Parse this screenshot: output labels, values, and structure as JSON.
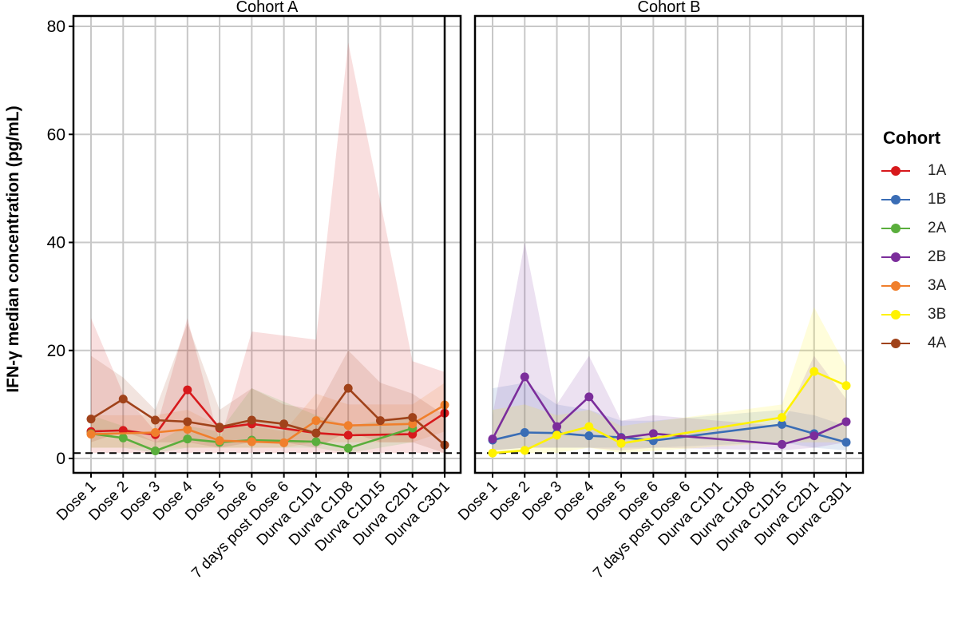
{
  "chart_data": {
    "type": "line",
    "ylabel": "IFN-γ median concentration (pg/mL)",
    "ylim": [
      0,
      80
    ],
    "yticks": [
      0,
      20,
      40,
      60,
      80
    ],
    "grid": true,
    "reference_line": 1.0,
    "legend": {
      "title": "Cohort",
      "placement": "right"
    },
    "categories": [
      "Dose 1",
      "Dose 2",
      "Dose 3",
      "Dose 4",
      "Dose 5",
      "Dose 6",
      "7 days post Dose 6",
      "Durva C1D1",
      "Durva C1D8",
      "Durva C1D15",
      "Durva C2D1",
      "Durva C3D1"
    ],
    "panels": [
      {
        "title": "Cohort A",
        "series": [
          {
            "name": "1A",
            "color": "#D7191C",
            "values": [
              5.0,
              5.2,
              4.4,
              12.7,
              5.6,
              6.4,
              null,
              4.7,
              4.3,
              null,
              4.5,
              8.4
            ],
            "band_low": [
              1.0,
              1.0,
              1.0,
              1.0,
              1.0,
              1.0,
              null,
              1.0,
              1.0,
              null,
              1.0,
              1.0
            ],
            "band_high": [
              26,
              12,
              5,
              26,
              3,
              23.5,
              null,
              22,
              77,
              null,
              18,
              16
            ]
          },
          {
            "name": "2A",
            "color": "#5AAE3C",
            "values": [
              4.6,
              3.8,
              1.4,
              3.6,
              3.0,
              3.4,
              null,
              3.1,
              1.9,
              null,
              5.6,
              null
            ],
            "band_low": [
              2,
              2,
              1,
              2,
              2,
              2,
              null,
              2,
              1,
              null,
              3,
              null
            ],
            "band_high": [
              8,
              6,
              3,
              6,
              5,
              13,
              null,
              8,
              6,
              null,
              8,
              null
            ]
          },
          {
            "name": "3A",
            "color": "#F07F2C",
            "values": [
              4.5,
              null,
              4.8,
              5.4,
              3.3,
              3.1,
              2.9,
              7.0,
              6.1,
              null,
              6.4,
              9.9
            ],
            "band_low": [
              2,
              null,
              2,
              2,
              2,
              2,
              2,
              3,
              3,
              null,
              3,
              5
            ],
            "band_high": [
              8,
              null,
              8,
              9,
              6,
              6,
              5,
              12,
              10,
              null,
              10,
              14
            ]
          },
          {
            "name": "4A",
            "color": "#A0421A",
            "values": [
              7.3,
              11.0,
              7.1,
              6.8,
              5.8,
              7.1,
              6.4,
              4.7,
              13.0,
              7.0,
              7.6,
              2.5
            ],
            "band_low": [
              3,
              5,
              3,
              3,
              2,
              3,
              3,
              2,
              5,
              3,
              3,
              1
            ],
            "band_high": [
              19,
              15,
              9,
              25,
              9,
              13,
              10,
              9,
              20,
              14,
              12,
              8
            ]
          }
        ]
      },
      {
        "title": "Cohort B",
        "series": [
          {
            "name": "1B",
            "color": "#3A6DB5",
            "values": [
              3.4,
              4.8,
              4.7,
              4.2,
              3.9,
              3.3,
              null,
              null,
              null,
              6.3,
              4.6,
              3.0
            ],
            "band_low": [
              1.5,
              2,
              2,
              2,
              2,
              2,
              null,
              null,
              null,
              3,
              2,
              1.5
            ],
            "band_high": [
              13,
              14,
              10,
              9,
              7,
              7,
              null,
              null,
              null,
              9,
              8,
              6
            ]
          },
          {
            "name": "2B",
            "color": "#7B2D9B",
            "values": [
              3.6,
              15.1,
              5.9,
              11.4,
              3.8,
              4.6,
              null,
              null,
              null,
              2.6,
              4.2,
              6.8
            ],
            "band_low": [
              1.5,
              2,
              2,
              2,
              1.5,
              2,
              null,
              null,
              null,
              1.5,
              2,
              3
            ],
            "band_high": [
              8,
              40,
              10,
              19,
              7,
              8,
              null,
              null,
              null,
              6,
              19,
              11
            ]
          },
          {
            "name": "3B",
            "color": "#FFF200",
            "values": [
              1.0,
              1.5,
              4.3,
              5.9,
              2.8,
              null,
              null,
              null,
              null,
              7.6,
              16.1,
              13.5
            ],
            "band_low": [
              1,
              1,
              1,
              2,
              1,
              null,
              null,
              null,
              null,
              3,
              3,
              3
            ],
            "band_high": [
              9,
              10,
              8,
              9,
              6,
              null,
              null,
              null,
              null,
              10,
              28,
              17
            ]
          }
        ]
      }
    ],
    "legend_entries": [
      {
        "name": "1A",
        "color": "#D7191C"
      },
      {
        "name": "1B",
        "color": "#3A6DB5"
      },
      {
        "name": "2A",
        "color": "#5AAE3C"
      },
      {
        "name": "2B",
        "color": "#7B2D9B"
      },
      {
        "name": "3A",
        "color": "#F07F2C"
      },
      {
        "name": "3B",
        "color": "#FFF200"
      },
      {
        "name": "4A",
        "color": "#A0421A"
      }
    ]
  }
}
